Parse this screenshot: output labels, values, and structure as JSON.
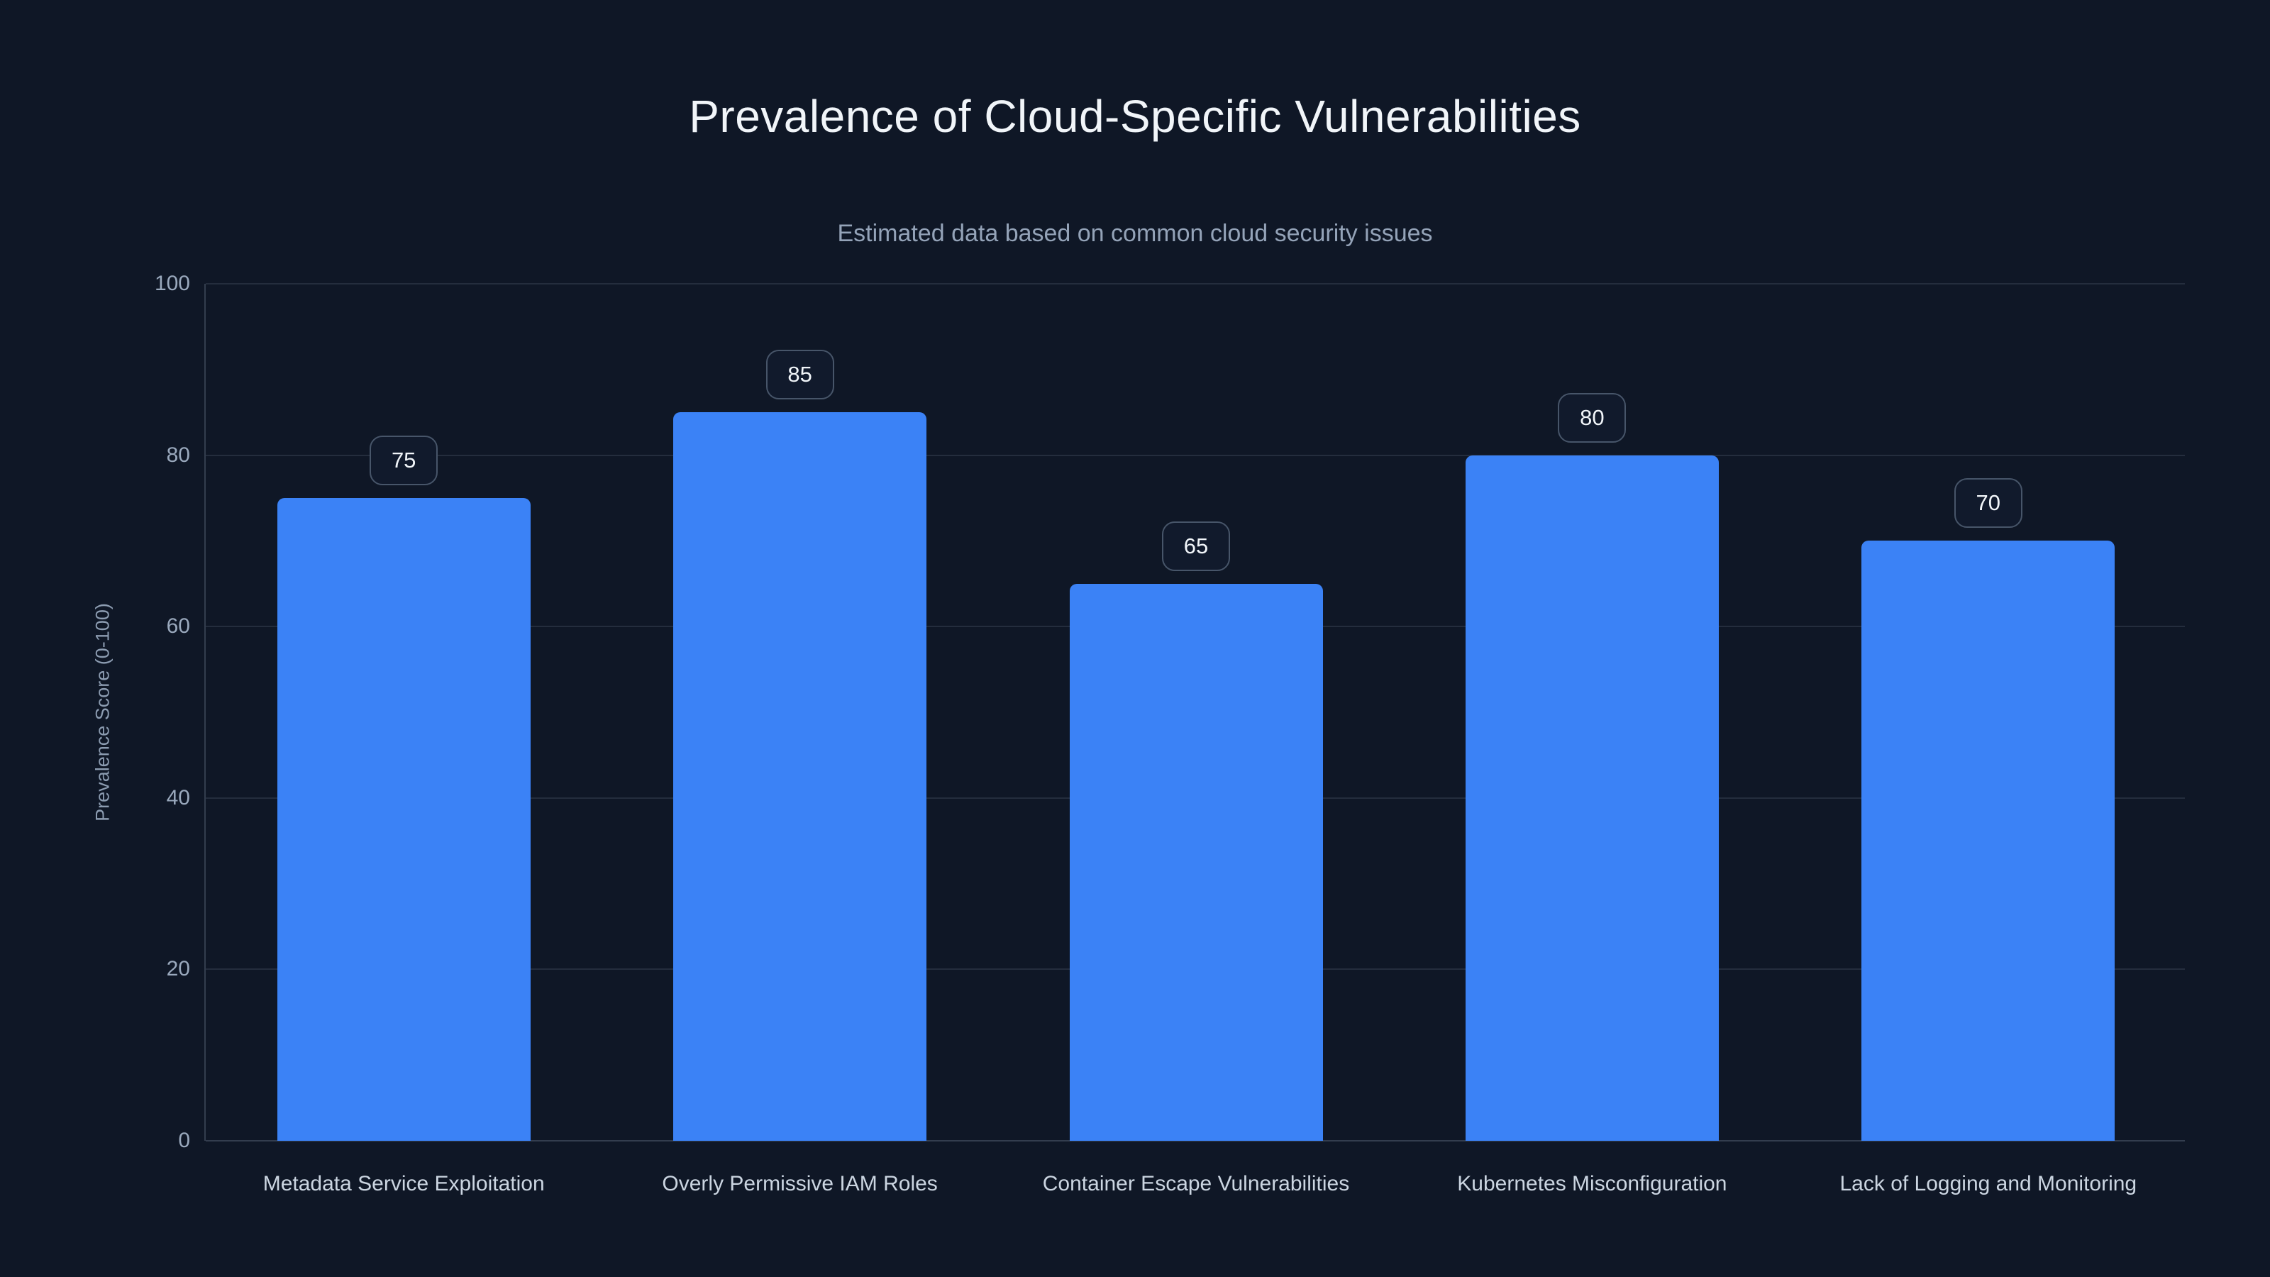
{
  "page": {
    "background": "#0f1726"
  },
  "chart_data": {
    "type": "bar",
    "title": "Prevalence of Cloud-Specific Vulnerabilities",
    "subtitle": "Estimated data based on common cloud security issues",
    "ylabel": "Prevalence Score (0-100)",
    "xlabel": "",
    "categories": [
      "Metadata Service Exploitation",
      "Overly Permissive IAM Roles",
      "Container Escape Vulnerabilities",
      "Kubernetes Misconfiguration",
      "Lack of Logging and Monitoring"
    ],
    "values": [
      75,
      85,
      65,
      80,
      70
    ],
    "value_labels": [
      "75",
      "85",
      "65",
      "80",
      "70"
    ],
    "ylim": [
      0,
      100
    ],
    "yticks": [
      0,
      20,
      40,
      60,
      80,
      100
    ],
    "grid": true,
    "legend_position": "none",
    "colors": {
      "bar": "#3b82f6",
      "background": "#0f1726",
      "gridline": "rgba(148,163,184,0.16)",
      "title_text": "#f1f5f9",
      "subtitle_text": "#94a3b8",
      "tick_text": "#9aa9bd",
      "category_text": "#cbd5e1",
      "badge_border": "#475569",
      "badge_text": "#f1f5f9"
    }
  }
}
